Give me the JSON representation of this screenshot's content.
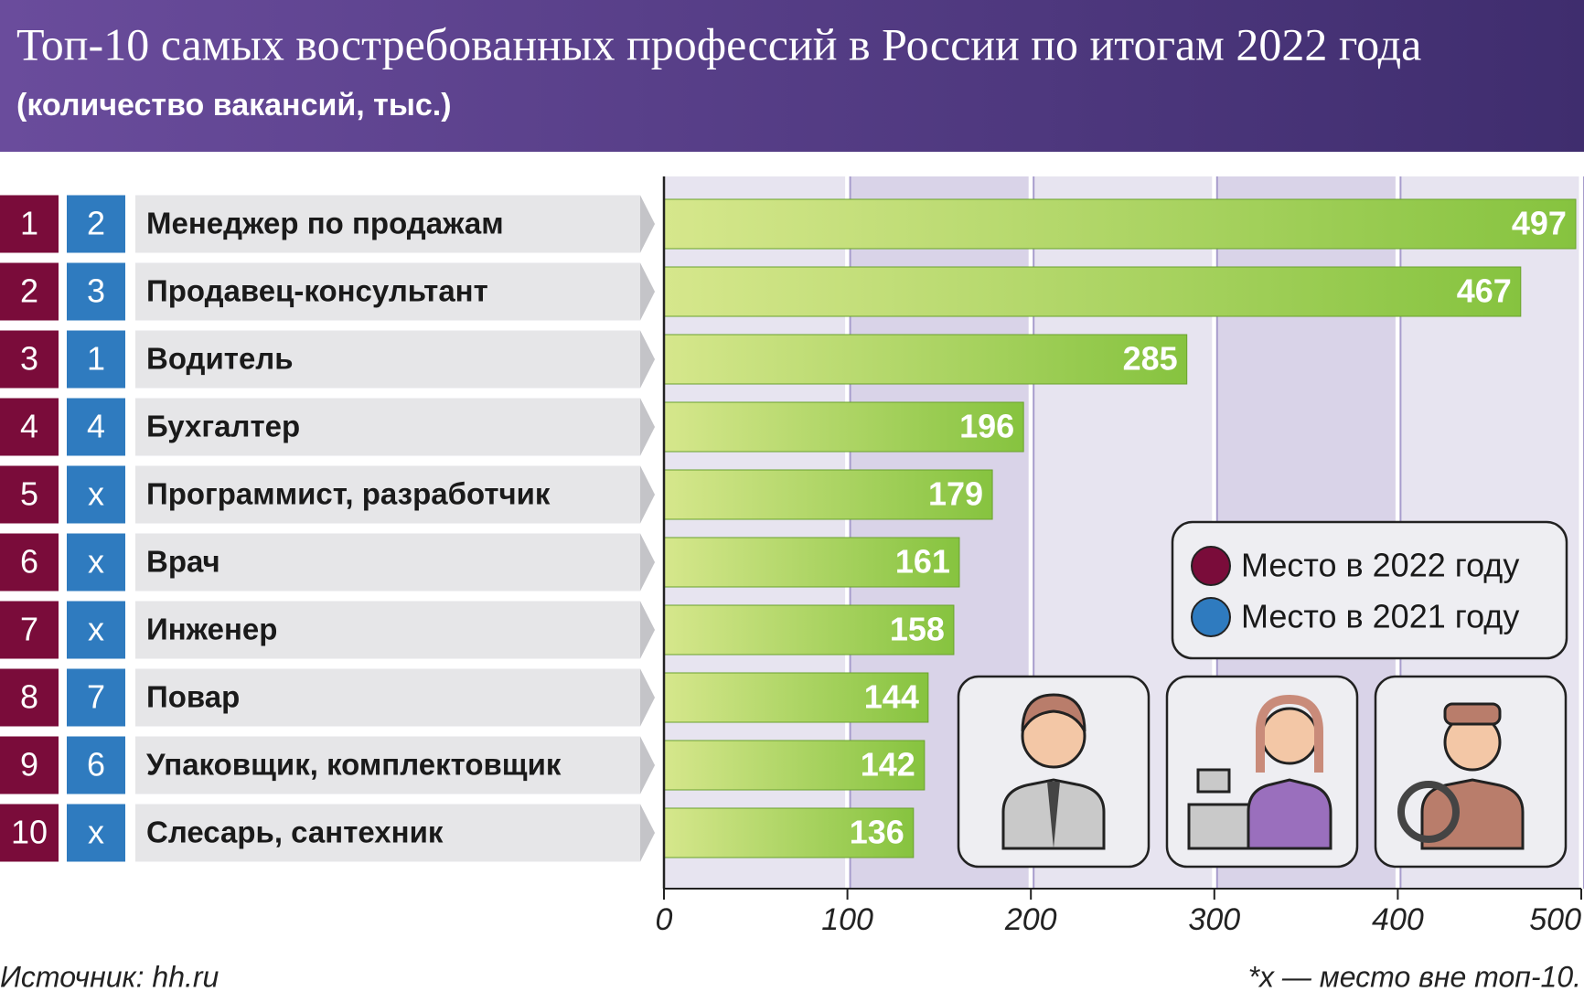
{
  "chart_data": {
    "type": "bar",
    "title": "Топ-10 самых востребованных профессий в России по итогам 2022 года",
    "subtitle": "(количество вакансий, тыс.)",
    "categories": [
      "Менеджер по продажам",
      "Продавец-консультант",
      "Водитель",
      "Бухгалтер",
      "Программист, разработчик",
      "Врач",
      "Инженер",
      "Повар",
      "Упаковщик, комплектовщик",
      "Слесарь, сантехник"
    ],
    "values": [
      497,
      467,
      285,
      196,
      179,
      161,
      158,
      144,
      142,
      136
    ],
    "rank_2022": [
      1,
      2,
      3,
      4,
      5,
      6,
      7,
      8,
      9,
      10
    ],
    "rank_2021": [
      2,
      3,
      1,
      4,
      "x",
      "x",
      "x",
      7,
      6,
      "x"
    ],
    "legend": [
      {
        "name": "Место в 2022 году",
        "color": "#7a0c3a"
      },
      {
        "name": "Место в 2021 году",
        "color": "#2f7bbf"
      }
    ],
    "color": "#86c33f",
    "color_from": "#d6e78c",
    "xlim": [
      0,
      500
    ],
    "xticks": [
      0,
      100,
      200,
      300,
      400,
      500
    ],
    "grid": true,
    "source": "Источник: hh.ru",
    "footnote": "*x — место вне топ-10."
  }
}
